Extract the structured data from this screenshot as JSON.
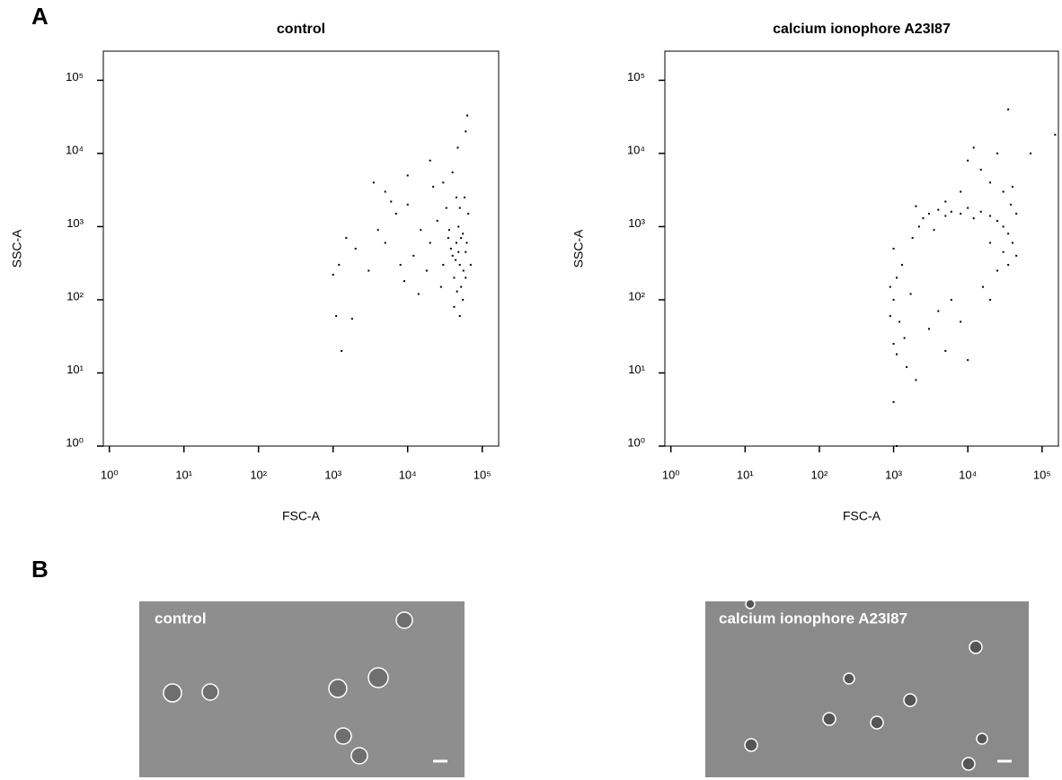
{
  "panel_labels": [
    "A",
    "B"
  ],
  "chart_data": [
    {
      "type": "scatter",
      "title": "control",
      "x_label": "FSC-A",
      "y_label": "SSC-A",
      "log_x": true,
      "log_y": true,
      "color": "#000000",
      "xlim": [
        0.83,
        166000
      ],
      "ylim": [
        1,
        250000
      ],
      "xticks": [
        {
          "value": 1,
          "label": "10⁰"
        },
        {
          "value": 10,
          "label": "10¹"
        },
        {
          "value": 100,
          "label": "10²"
        },
        {
          "value": 1000,
          "label": "10³"
        },
        {
          "value": 10000,
          "label": "10⁴"
        },
        {
          "value": 100000,
          "label": "10⁵"
        }
      ],
      "yticks": [
        {
          "value": 1,
          "label": "10⁰"
        },
        {
          "value": 10,
          "label": "10¹"
        },
        {
          "value": 100,
          "label": "10²"
        },
        {
          "value": 1000,
          "label": "10³"
        },
        {
          "value": 10000,
          "label": "10⁴"
        },
        {
          "value": 100000,
          "label": "10⁵"
        }
      ],
      "x": [
        40000,
        45000,
        50000,
        55000,
        42000,
        48000,
        52000,
        38000,
        60000,
        35000,
        30000,
        25000,
        20000,
        15000,
        12000,
        10000,
        8000,
        7000,
        5000,
        4000,
        3000,
        2000,
        1500,
        1200,
        1000,
        1300,
        1100,
        1800,
        5000,
        10000,
        20000,
        30000,
        45000,
        55000,
        50000,
        42000,
        60000,
        65000,
        70000,
        58000,
        33000,
        28000,
        18000,
        22000,
        14000,
        9000,
        6000,
        3500,
        63000,
        60000,
        47000,
        40000,
        52000,
        44000,
        56000,
        48000,
        36000,
        62000,
        50000,
        46000
      ],
      "values": [
        400,
        600,
        300,
        800,
        200,
        1000,
        150,
        500,
        450,
        700,
        300,
        1200,
        600,
        900,
        400,
        2000,
        300,
        1500,
        600,
        900,
        250,
        500,
        700,
        300,
        220,
        20,
        60,
        55,
        3000,
        5000,
        8000,
        4000,
        2500,
        100,
        60,
        80,
        200,
        1500,
        300,
        2500,
        1800,
        150,
        250,
        3500,
        120,
        180,
        2200,
        4000,
        33000,
        20000,
        12000,
        5500,
        700,
        350,
        250,
        450,
        900,
        600,
        1800,
        130
      ]
    },
    {
      "type": "scatter",
      "title": "calcium ionophore A23I87",
      "x_label": "FSC-A",
      "y_label": "SSC-A",
      "log_x": true,
      "log_y": true,
      "color": "#000000",
      "xlim": [
        0.83,
        166000
      ],
      "ylim": [
        1,
        250000
      ],
      "xticks": [
        {
          "value": 1,
          "label": "10⁰"
        },
        {
          "value": 10,
          "label": "10¹"
        },
        {
          "value": 100,
          "label": "10²"
        },
        {
          "value": 1000,
          "label": "10³"
        },
        {
          "value": 10000,
          "label": "10⁴"
        },
        {
          "value": 100000,
          "label": "10⁵"
        }
      ],
      "yticks": [
        {
          "value": 1,
          "label": "10⁰"
        },
        {
          "value": 10,
          "label": "10¹"
        },
        {
          "value": 100,
          "label": "10²"
        },
        {
          "value": 1000,
          "label": "10³"
        },
        {
          "value": 10000,
          "label": "10⁴"
        },
        {
          "value": 100000,
          "label": "10⁵"
        }
      ],
      "x": [
        3000,
        4000,
        5000,
        6000,
        8000,
        10000,
        12000,
        15000,
        20000,
        25000,
        30000,
        35000,
        40000,
        45000,
        38000,
        30000,
        20000,
        15000,
        10000,
        12000,
        25000,
        40000,
        45000,
        35000,
        30000,
        20000,
        8000,
        5000,
        2500,
        2000,
        2200,
        3500,
        1800,
        1000,
        1100,
        900,
        1000,
        1200,
        1400,
        1000,
        1100,
        1500,
        2000,
        1000,
        1100,
        900,
        1300,
        1700,
        3000,
        4000,
        5000,
        8000,
        10000,
        6000,
        20000,
        16000,
        35000,
        70000,
        150000,
        25000
      ],
      "values": [
        1500,
        1700,
        1400,
        1600,
        1500,
        1800,
        1300,
        1600,
        1400,
        1200,
        1000,
        800,
        600,
        400,
        2000,
        3000,
        4000,
        6000,
        8000,
        12000,
        10000,
        3500,
        1500,
        300,
        450,
        600,
        3000,
        2200,
        1300,
        1900,
        1000,
        900,
        700,
        500,
        200,
        150,
        100,
        50,
        30,
        25,
        18,
        12,
        8,
        4,
        1,
        60,
        300,
        120,
        40,
        70,
        20,
        50,
        15,
        100,
        100,
        150,
        40000,
        10000,
        18000,
        250
      ]
    }
  ],
  "images": [
    {
      "label": "control"
    },
    {
      "label": "calcium ionophore A23I87"
    }
  ]
}
